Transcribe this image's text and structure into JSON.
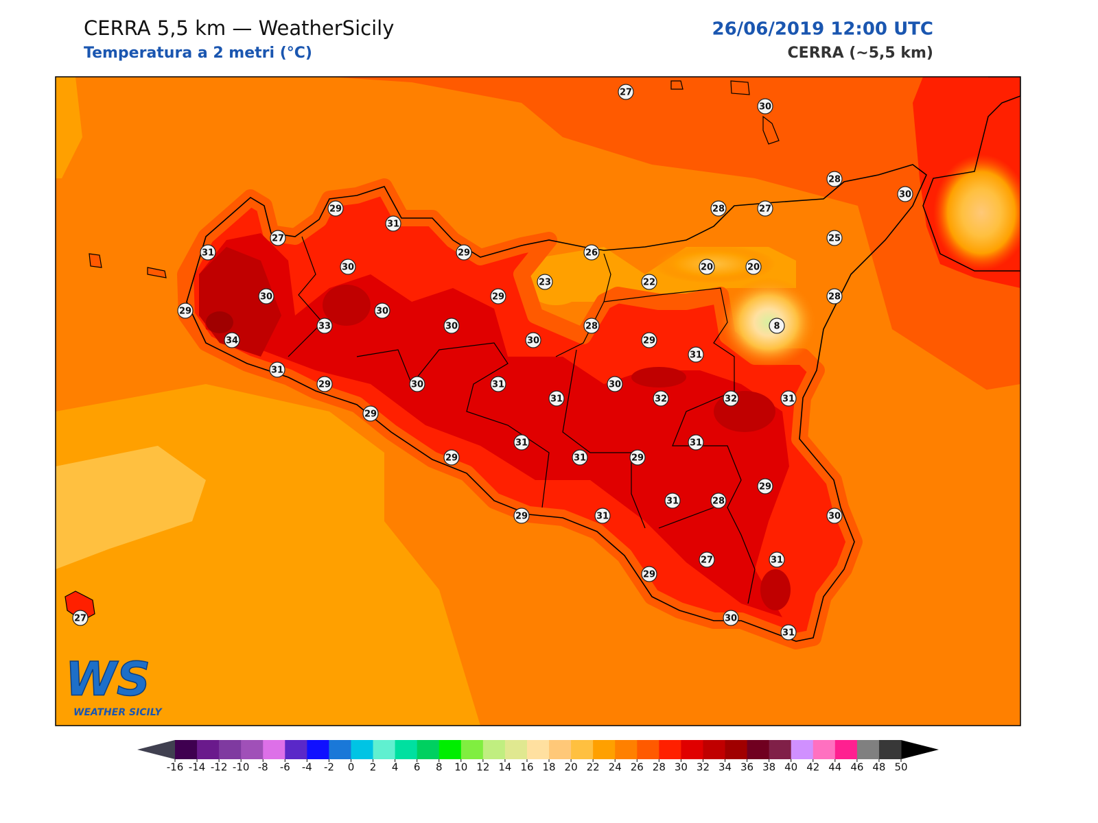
{
  "header": {
    "title": "CERRA 5,5 km — WeatherSicily",
    "subtitle": "Temperatura a 2 metri (°C)",
    "date": "26/06/2019 12:00 UTC",
    "model": "CERRA (~5,5 km)"
  },
  "logo": {
    "mark": "WS",
    "name": "WEATHER SICILY"
  },
  "stations": [
    27,
    30,
    28,
    30,
    29,
    31,
    28,
    27,
    27,
    25,
    31,
    29,
    26,
    30,
    20,
    20,
    23,
    22,
    30,
    29,
    28,
    29,
    30,
    33,
    30,
    28,
    8,
    34,
    30,
    29,
    31,
    31,
    29,
    30,
    31,
    30,
    31,
    32,
    32,
    31,
    29,
    31,
    31,
    29,
    31,
    29,
    29,
    31,
    28,
    30,
    29,
    31,
    27,
    31,
    29,
    30,
    31,
    27
  ],
  "colorbar": {
    "ticks": [
      -16,
      -14,
      -12,
      -10,
      -8,
      -6,
      -4,
      -2,
      0,
      2,
      4,
      6,
      8,
      10,
      12,
      14,
      16,
      18,
      20,
      22,
      24,
      26,
      28,
      30,
      32,
      34,
      36,
      38,
      40,
      42,
      44,
      46,
      48,
      50
    ],
    "colors": [
      "#3f0050",
      "#6a1a8c",
      "#7f3aa0",
      "#a050b8",
      "#dd70e8",
      "#5a28c8",
      "#1010ff",
      "#1a78d8",
      "#00c4e4",
      "#60f0d0",
      "#00e0a0",
      "#00d060",
      "#00ee00",
      "#80ee40",
      "#c0ee80",
      "#e0e890",
      "#ffe0a0",
      "#ffc878",
      "#ffc040",
      "#ffa000",
      "#ff8000",
      "#ff5a00",
      "#ff2000",
      "#e00000",
      "#c00000",
      "#a00000",
      "#700020",
      "#802048",
      "#d090ff",
      "#ff70c0",
      "#ff2090",
      "#808080",
      "#383838"
    ],
    "under": "#404050",
    "over": "#000000"
  }
}
